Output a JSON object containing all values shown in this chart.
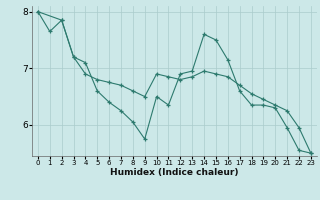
{
  "xlabel": "Humidex (Indice chaleur)",
  "bg_color": "#cce8e8",
  "grid_color": "#aacccc",
  "line_color": "#2d7a6e",
  "plot_bg": "#cce8e8",
  "xlim": [
    -0.5,
    23.5
  ],
  "ylim": [
    5.45,
    8.1
  ],
  "yticks": [
    6,
    7,
    8
  ],
  "xticks": [
    0,
    1,
    2,
    3,
    4,
    5,
    6,
    7,
    8,
    9,
    10,
    11,
    12,
    13,
    14,
    15,
    16,
    17,
    18,
    19,
    20,
    21,
    22,
    23
  ],
  "series": [
    {
      "x": [
        0,
        1,
        2,
        3,
        4,
        5,
        6,
        7,
        8,
        9,
        10,
        11,
        12,
        13,
        14,
        15,
        16,
        17,
        18,
        19,
        20,
        21,
        22,
        23
      ],
      "y": [
        8.0,
        7.65,
        7.85,
        7.2,
        7.1,
        6.6,
        6.4,
        6.25,
        6.05,
        5.75,
        6.5,
        6.35,
        6.9,
        6.95,
        7.6,
        7.5,
        7.15,
        6.6,
        6.35,
        6.35,
        6.3,
        5.95,
        5.55,
        5.5
      ]
    },
    {
      "x": [
        0,
        2,
        3,
        4,
        5,
        6,
        7,
        8,
        9,
        10,
        11,
        12,
        13,
        14,
        15,
        16,
        17,
        18,
        19,
        20,
        21,
        22,
        23
      ],
      "y": [
        8.0,
        7.85,
        7.2,
        6.9,
        6.8,
        6.75,
        6.7,
        6.6,
        6.5,
        6.9,
        6.85,
        6.8,
        6.85,
        6.95,
        6.9,
        6.85,
        6.7,
        6.55,
        6.45,
        6.35,
        6.25,
        5.95,
        5.5
      ]
    }
  ]
}
